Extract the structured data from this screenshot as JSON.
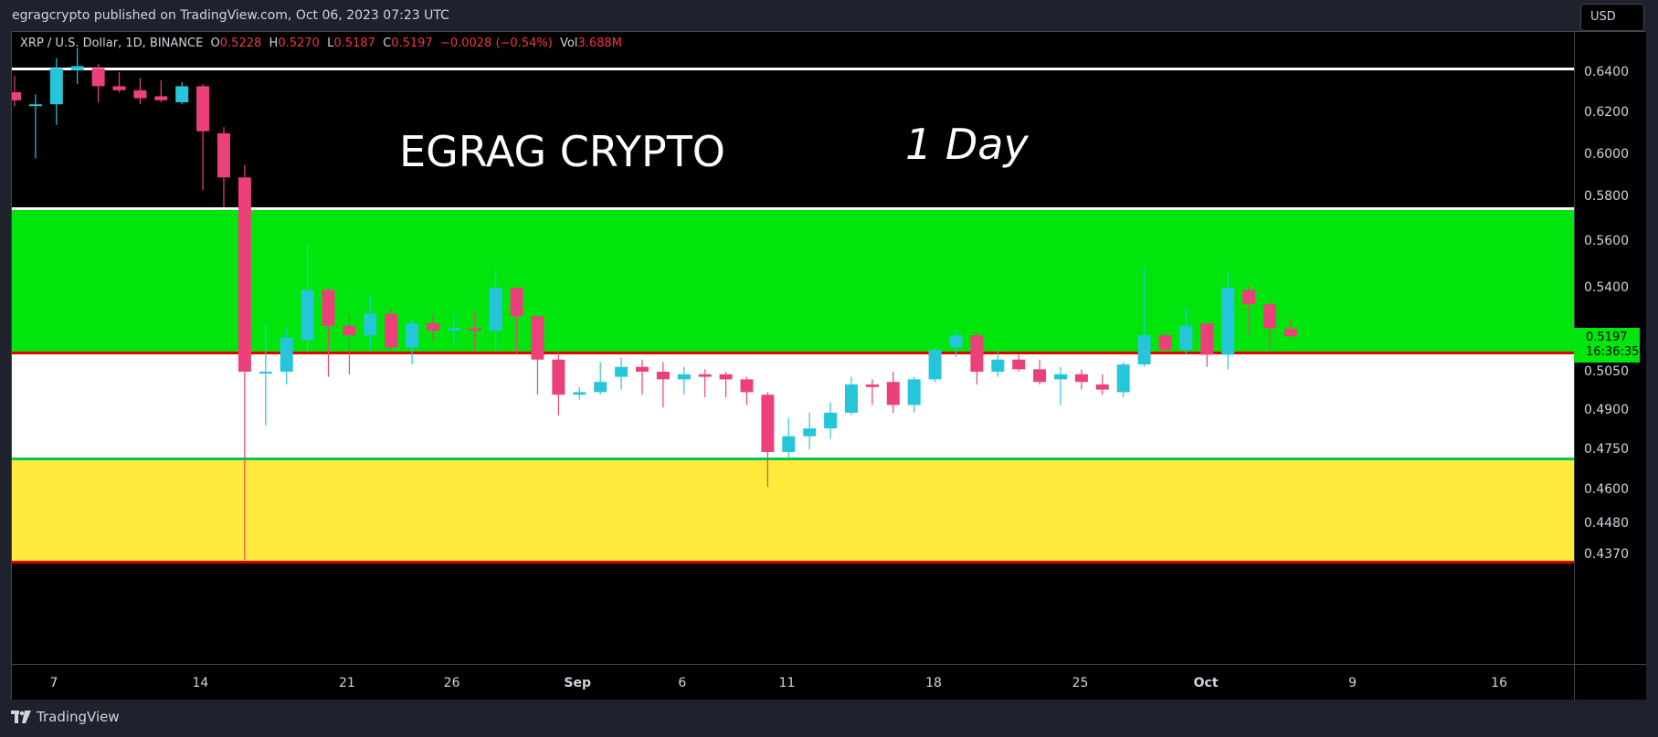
{
  "header": {
    "published": "egragcrypto published on TradingView.com, Oct 06, 2023 07:23 UTC"
  },
  "legend": {
    "symbol": "XRP / U.S. Dollar, 1D, BINANCE",
    "o_key": "O",
    "o": "0.5228",
    "h_key": "H",
    "h": "0.5270",
    "l_key": "L",
    "l": "0.5187",
    "c_key": "C",
    "c": "0.5197",
    "change": "−0.0028 (−0.54%)",
    "vol_key": "Vol",
    "vol": "3.688M"
  },
  "overlay": {
    "title": "EGRAG CRYPTO",
    "timeframe": "1 Day"
  },
  "currency_button": "USD",
  "last_price": {
    "price": "0.5197",
    "countdown": "16:36:35"
  },
  "footer": {
    "brand": "TradingView"
  },
  "colors": {
    "up": "#26c6da",
    "down": "#ec407a",
    "green_zone": "#00e60c",
    "yellow_zone": "#ffeb3b",
    "red_line": "#e50000",
    "white_line": "#ffffff",
    "green_line": "#00c853"
  },
  "chart_data": {
    "type": "candlestick",
    "x_labels": [
      "7",
      "14",
      "21",
      "26",
      "Sep",
      "6",
      "11",
      "18",
      "25",
      "Oct",
      "9",
      "16"
    ],
    "y_ticks": [
      0.64,
      0.62,
      0.6,
      0.58,
      0.56,
      0.54,
      0.5197,
      0.505,
      0.49,
      0.475,
      0.46,
      0.448,
      0.437
    ],
    "y_tick_labels": [
      "0.6400",
      "0.6200",
      "0.6000",
      "0.5800",
      "0.5600",
      "0.5400",
      "0.5197",
      "0.5050",
      "0.4900",
      "0.4750",
      "0.4600",
      "0.4480",
      "0.4370"
    ],
    "zones": [
      {
        "name": "green",
        "from": 0.5128,
        "to": 0.5745
      },
      {
        "name": "white",
        "from": 0.4715,
        "to": 0.5128
      },
      {
        "name": "yellow",
        "from": 0.4345,
        "to": 0.4715
      }
    ],
    "levels": [
      {
        "price": 0.6418,
        "color": "white"
      },
      {
        "price": 0.5745,
        "color": "white"
      },
      {
        "price": 0.5128,
        "color": "red"
      },
      {
        "price": 0.4715,
        "color": "green"
      },
      {
        "price": 0.4345,
        "color": "red"
      }
    ],
    "candles": [
      {
        "date": "Aug 06",
        "open": 0.63,
        "high": 0.638,
        "low": 0.623,
        "close": 0.626
      },
      {
        "date": "Aug 07",
        "open": 0.624,
        "high": 0.629,
        "low": 0.598,
        "close": 0.624
      },
      {
        "date": "Aug 08",
        "open": 0.624,
        "high": 0.647,
        "low": 0.614,
        "close": 0.642
      },
      {
        "date": "Aug 09",
        "open": 0.641,
        "high": 0.652,
        "low": 0.634,
        "close": 0.643
      },
      {
        "date": "Aug 10",
        "open": 0.642,
        "high": 0.644,
        "low": 0.625,
        "close": 0.633
      },
      {
        "date": "Aug 11",
        "open": 0.633,
        "high": 0.64,
        "low": 0.63,
        "close": 0.631
      },
      {
        "date": "Aug 12",
        "open": 0.631,
        "high": 0.637,
        "low": 0.624,
        "close": 0.627
      },
      {
        "date": "Aug 13",
        "open": 0.628,
        "high": 0.636,
        "low": 0.625,
        "close": 0.626
      },
      {
        "date": "Aug 14",
        "open": 0.625,
        "high": 0.635,
        "low": 0.624,
        "close": 0.633
      },
      {
        "date": "Aug 15",
        "open": 0.633,
        "high": 0.634,
        "low": 0.583,
        "close": 0.611
      },
      {
        "date": "Aug 16",
        "open": 0.61,
        "high": 0.613,
        "low": 0.575,
        "close": 0.589
      },
      {
        "date": "Aug 17",
        "open": 0.589,
        "high": 0.595,
        "low": 0.435,
        "close": 0.505
      },
      {
        "date": "Aug 18",
        "open": 0.505,
        "high": 0.525,
        "low": 0.484,
        "close": 0.505
      },
      {
        "date": "Aug 19",
        "open": 0.505,
        "high": 0.523,
        "low": 0.5,
        "close": 0.519
      },
      {
        "date": "Aug 20",
        "open": 0.518,
        "high": 0.559,
        "low": 0.513,
        "close": 0.539
      },
      {
        "date": "Aug 21",
        "open": 0.539,
        "high": 0.54,
        "low": 0.503,
        "close": 0.524
      },
      {
        "date": "Aug 22",
        "open": 0.524,
        "high": 0.529,
        "low": 0.504,
        "close": 0.52
      },
      {
        "date": "Aug 23",
        "open": 0.52,
        "high": 0.537,
        "low": 0.514,
        "close": 0.529
      },
      {
        "date": "Aug 24",
        "open": 0.529,
        "high": 0.532,
        "low": 0.514,
        "close": 0.515
      },
      {
        "date": "Aug 25",
        "open": 0.515,
        "high": 0.527,
        "low": 0.508,
        "close": 0.525
      },
      {
        "date": "Aug 26",
        "open": 0.525,
        "high": 0.529,
        "low": 0.518,
        "close": 0.522
      },
      {
        "date": "Aug 27",
        "open": 0.522,
        "high": 0.529,
        "low": 0.517,
        "close": 0.523
      },
      {
        "date": "Aug 28",
        "open": 0.523,
        "high": 0.53,
        "low": 0.514,
        "close": 0.522
      },
      {
        "date": "Aug 29",
        "open": 0.522,
        "high": 0.548,
        "low": 0.514,
        "close": 0.54
      },
      {
        "date": "Aug 30",
        "open": 0.54,
        "high": 0.54,
        "low": 0.512,
        "close": 0.528
      },
      {
        "date": "Aug 31",
        "open": 0.528,
        "high": 0.528,
        "low": 0.496,
        "close": 0.51
      },
      {
        "date": "Sep 01",
        "open": 0.51,
        "high": 0.513,
        "low": 0.488,
        "close": 0.496
      },
      {
        "date": "Sep 02",
        "open": 0.496,
        "high": 0.499,
        "low": 0.494,
        "close": 0.497
      },
      {
        "date": "Sep 03",
        "open": 0.497,
        "high": 0.509,
        "low": 0.496,
        "close": 0.501
      },
      {
        "date": "Sep 04",
        "open": 0.503,
        "high": 0.511,
        "low": 0.498,
        "close": 0.507
      },
      {
        "date": "Sep 05",
        "open": 0.507,
        "high": 0.51,
        "low": 0.496,
        "close": 0.505
      },
      {
        "date": "Sep 06",
        "open": 0.505,
        "high": 0.509,
        "low": 0.491,
        "close": 0.502
      },
      {
        "date": "Sep 07",
        "open": 0.502,
        "high": 0.507,
        "low": 0.496,
        "close": 0.504
      },
      {
        "date": "Sep 08",
        "open": 0.504,
        "high": 0.506,
        "low": 0.495,
        "close": 0.503
      },
      {
        "date": "Sep 09",
        "open": 0.504,
        "high": 0.505,
        "low": 0.495,
        "close": 0.502
      },
      {
        "date": "Sep 10",
        "open": 0.502,
        "high": 0.503,
        "low": 0.492,
        "close": 0.497
      },
      {
        "date": "Sep 11",
        "open": 0.496,
        "high": 0.497,
        "low": 0.461,
        "close": 0.474
      },
      {
        "date": "Sep 12",
        "open": 0.474,
        "high": 0.487,
        "low": 0.472,
        "close": 0.48
      },
      {
        "date": "Sep 13",
        "open": 0.48,
        "high": 0.489,
        "low": 0.475,
        "close": 0.483
      },
      {
        "date": "Sep 14",
        "open": 0.483,
        "high": 0.493,
        "low": 0.479,
        "close": 0.489
      },
      {
        "date": "Sep 15",
        "open": 0.489,
        "high": 0.503,
        "low": 0.488,
        "close": 0.5
      },
      {
        "date": "Sep 16",
        "open": 0.5,
        "high": 0.502,
        "low": 0.492,
        "close": 0.499
      },
      {
        "date": "Sep 17",
        "open": 0.501,
        "high": 0.505,
        "low": 0.489,
        "close": 0.492
      },
      {
        "date": "Sep 18",
        "open": 0.492,
        "high": 0.503,
        "low": 0.489,
        "close": 0.502
      },
      {
        "date": "Sep 19",
        "open": 0.502,
        "high": 0.515,
        "low": 0.501,
        "close": 0.514
      },
      {
        "date": "Sep 20",
        "open": 0.515,
        "high": 0.522,
        "low": 0.511,
        "close": 0.52
      },
      {
        "date": "Sep 21",
        "open": 0.52,
        "high": 0.521,
        "low": 0.5,
        "close": 0.505
      },
      {
        "date": "Sep 22",
        "open": 0.505,
        "high": 0.514,
        "low": 0.503,
        "close": 0.51
      },
      {
        "date": "Sep 23",
        "open": 0.51,
        "high": 0.512,
        "low": 0.505,
        "close": 0.506
      },
      {
        "date": "Sep 24",
        "open": 0.506,
        "high": 0.51,
        "low": 0.5,
        "close": 0.501
      },
      {
        "date": "Sep 25",
        "open": 0.502,
        "high": 0.507,
        "low": 0.492,
        "close": 0.504
      },
      {
        "date": "Sep 26",
        "open": 0.504,
        "high": 0.506,
        "low": 0.498,
        "close": 0.501
      },
      {
        "date": "Sep 27",
        "open": 0.5,
        "high": 0.504,
        "low": 0.496,
        "close": 0.498
      },
      {
        "date": "Sep 28",
        "open": 0.497,
        "high": 0.509,
        "low": 0.495,
        "close": 0.508
      },
      {
        "date": "Sep 29",
        "open": 0.508,
        "high": 0.549,
        "low": 0.507,
        "close": 0.52
      },
      {
        "date": "Sep 30",
        "open": 0.52,
        "high": 0.521,
        "low": 0.513,
        "close": 0.514
      },
      {
        "date": "Oct 01",
        "open": 0.514,
        "high": 0.532,
        "low": 0.512,
        "close": 0.524
      },
      {
        "date": "Oct 02",
        "open": 0.525,
        "high": 0.525,
        "low": 0.507,
        "close": 0.512
      },
      {
        "date": "Oct 03",
        "open": 0.512,
        "high": 0.547,
        "low": 0.506,
        "close": 0.54
      },
      {
        "date": "Oct 04",
        "open": 0.539,
        "high": 0.541,
        "low": 0.52,
        "close": 0.533
      },
      {
        "date": "Oct 05",
        "open": 0.533,
        "high": 0.534,
        "low": 0.515,
        "close": 0.523
      },
      {
        "date": "Oct 06",
        "open": 0.5228,
        "high": 0.527,
        "low": 0.5187,
        "close": 0.5197
      }
    ]
  }
}
